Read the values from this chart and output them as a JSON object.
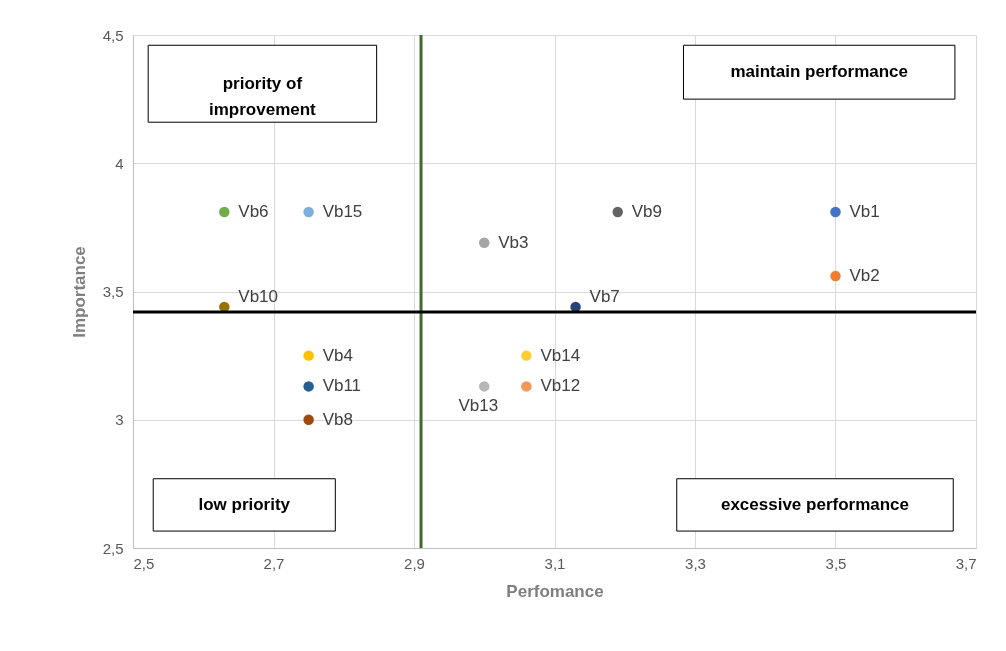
{
  "chart_data": {
    "type": "scatter",
    "xlabel": "Perfomance",
    "ylabel": "Importance",
    "xlim": [
      2.5,
      3.7
    ],
    "ylim": [
      2.5,
      4.5
    ],
    "xticks": [
      {
        "value": 2.5,
        "label": "2,5"
      },
      {
        "value": 2.7,
        "label": "2,7"
      },
      {
        "value": 2.9,
        "label": "2,9"
      },
      {
        "value": 3.1,
        "label": "3,1"
      },
      {
        "value": 3.3,
        "label": "3,3"
      },
      {
        "value": 3.5,
        "label": "3,5"
      },
      {
        "value": 3.7,
        "label": "3,7"
      }
    ],
    "yticks": [
      {
        "value": 2.5,
        "label": "2,5"
      },
      3,
      {
        "value": 3.5,
        "label": "3,5"
      },
      4,
      {
        "value": 4.5,
        "label": "4,5"
      }
    ],
    "grid": true,
    "legend": false,
    "marker": "circle",
    "series": [
      {
        "name": "Vb1",
        "color": "#4472c4",
        "x": [
          3.5
        ],
        "values": [
          3.81
        ]
      },
      {
        "name": "Vb2",
        "color": "#ed7d31",
        "x": [
          3.5
        ],
        "values": [
          3.56
        ]
      },
      {
        "name": "Vb3",
        "color": "#a5a5a5",
        "x": [
          3.0
        ],
        "values": [
          3.69
        ]
      },
      {
        "name": "Vb4",
        "color": "#ffc000",
        "x": [
          2.75
        ],
        "values": [
          3.25
        ]
      },
      {
        "name": "Vb6",
        "color": "#70ad47",
        "x": [
          2.63
        ],
        "values": [
          3.81
        ]
      },
      {
        "name": "Vb7",
        "color": "#264478",
        "x": [
          3.13
        ],
        "values": [
          3.44
        ]
      },
      {
        "name": "Vb8",
        "color": "#9e480e",
        "x": [
          2.75
        ],
        "values": [
          3.0
        ]
      },
      {
        "name": "Vb9",
        "color": "#636363",
        "x": [
          3.19
        ],
        "values": [
          3.81
        ]
      },
      {
        "name": "Vb10",
        "color": "#997300",
        "x": [
          2.63
        ],
        "values": [
          3.44
        ]
      },
      {
        "name": "Vb11",
        "color": "#255e91",
        "x": [
          2.75
        ],
        "values": [
          3.13
        ]
      },
      {
        "name": "Vb12",
        "color": "#f1975a",
        "x": [
          3.06
        ],
        "values": [
          3.13
        ]
      },
      {
        "name": "Vb13",
        "color": "#b7b7b7",
        "x": [
          3.0
        ],
        "values": [
          3.13
        ]
      },
      {
        "name": "Vb14",
        "color": "#ffcd33",
        "x": [
          3.06
        ],
        "values": [
          3.25
        ]
      },
      {
        "name": "Vb15",
        "color": "#7cafdd",
        "x": [
          2.75
        ],
        "values": [
          3.81
        ]
      }
    ],
    "ref_lines": [
      {
        "axis": "x",
        "value": 2.91,
        "color": "#43682b"
      },
      {
        "axis": "y",
        "value": 3.42,
        "color": "#000000"
      }
    ],
    "annotations": [
      "priority of improvement",
      "maintain performance",
      "low priority",
      "excessive performance"
    ]
  }
}
